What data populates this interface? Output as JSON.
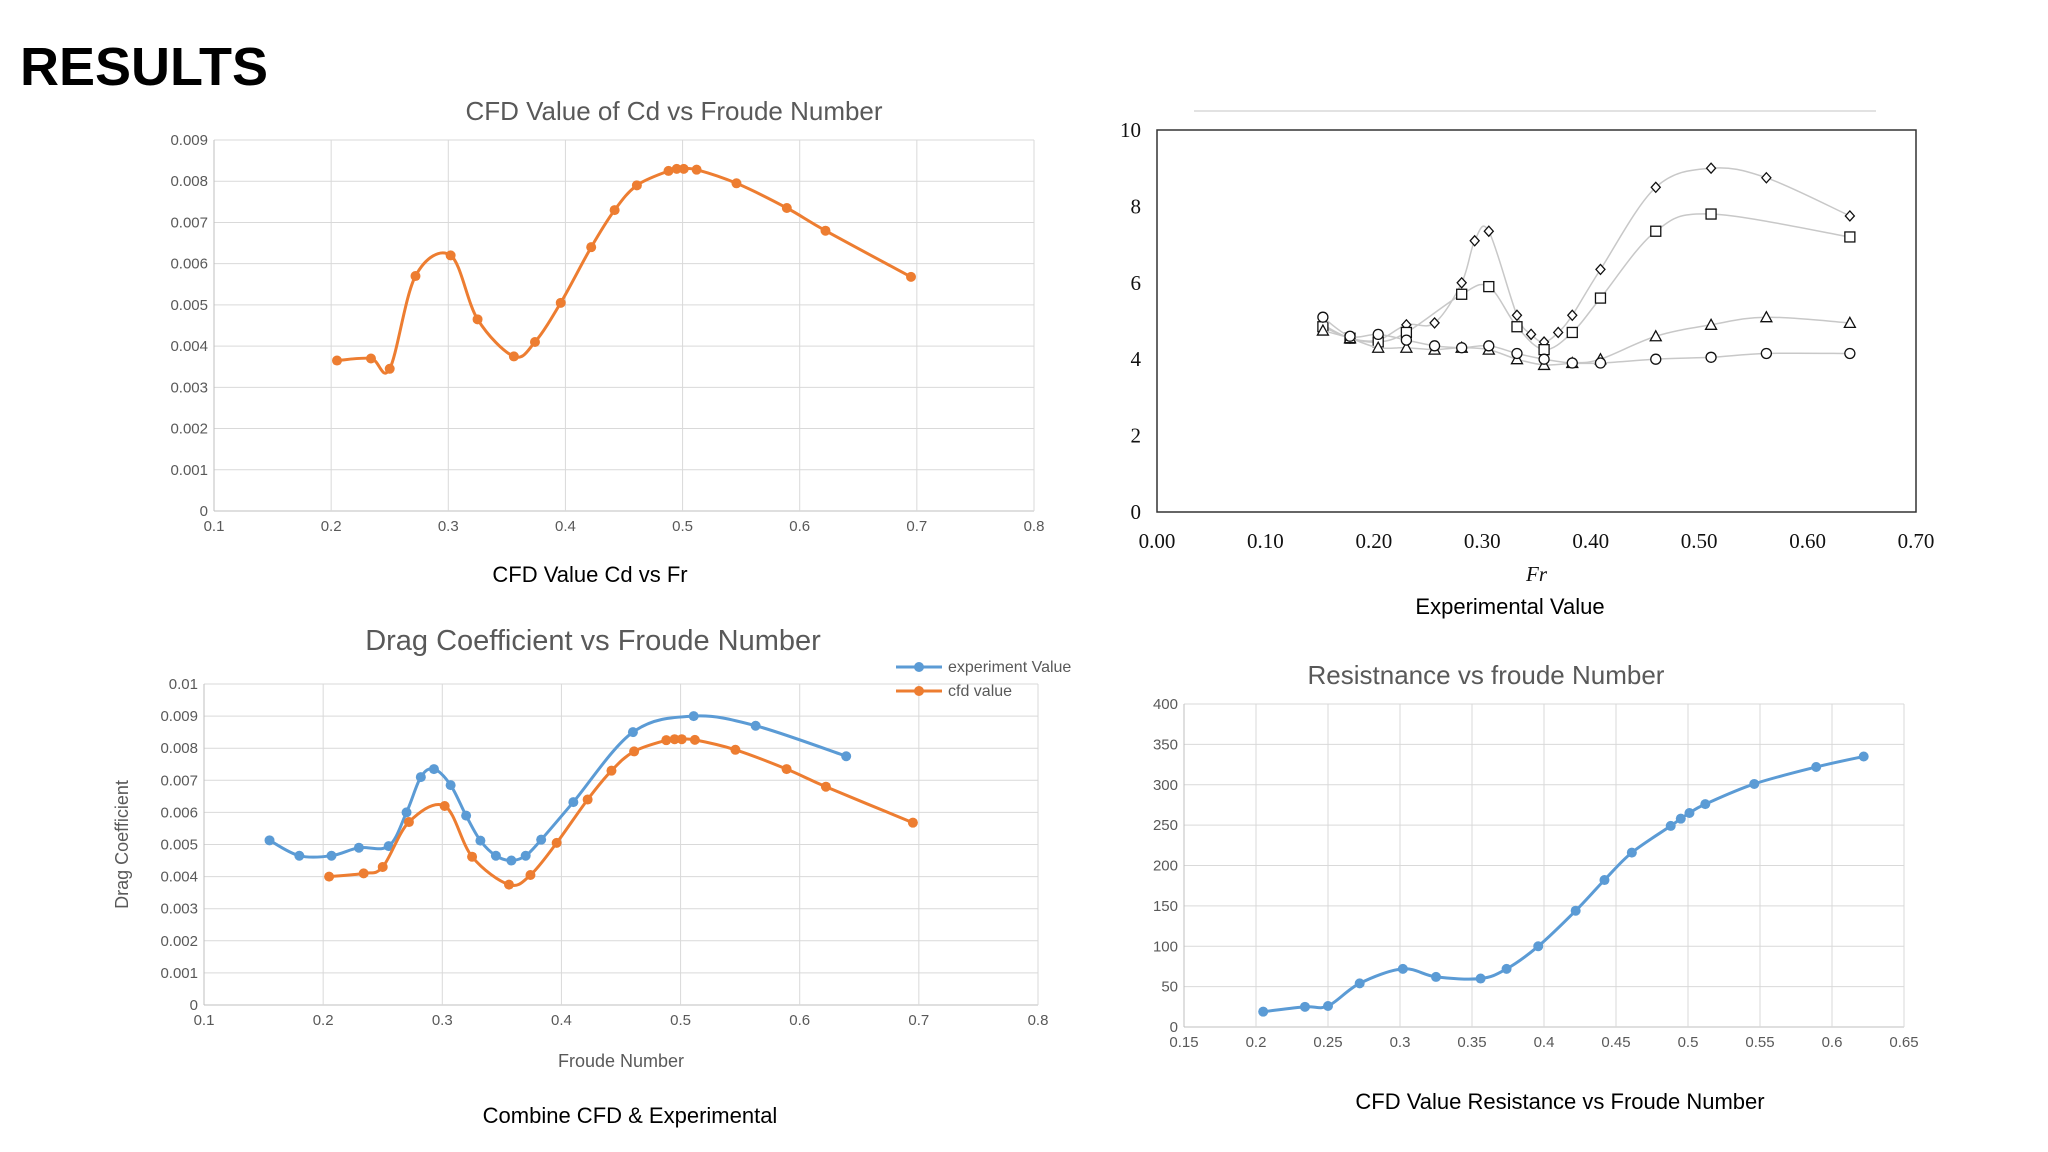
{
  "slide": {
    "title": "RESULTS"
  },
  "captions": {
    "cfd_cd": "CFD Value Cd vs Fr",
    "experimental": "Experimental Value",
    "combined": "Combine CFD & Experimental",
    "resistance": "CFD Value Resistance vs Froude Number"
  },
  "colors": {
    "orange": "#ED7D31",
    "blue": "#5B9BD5",
    "grid": "#D9D9D9",
    "axis_text": "#595959"
  },
  "chart_data": [
    {
      "id": "cfd_cd",
      "type": "line",
      "title": "CFD Value of Cd vs Froude Number",
      "xlabel": "",
      "ylabel": "",
      "xlim": [
        0.1,
        0.8
      ],
      "ylim": [
        0,
        0.009
      ],
      "xticks": [
        "0.1",
        "0.2",
        "0.3",
        "0.4",
        "0.5",
        "0.6",
        "0.7",
        "0.8"
      ],
      "yticks": [
        "0",
        "0.001",
        "0.002",
        "0.003",
        "0.004",
        "0.005",
        "0.006",
        "0.007",
        "0.008",
        "0.009"
      ],
      "grid": true,
      "series": [
        {
          "name": "cfd value",
          "color": "#ED7D31",
          "x": [
            0.205,
            0.234,
            0.25,
            0.272,
            0.302,
            0.325,
            0.356,
            0.374,
            0.396,
            0.422,
            0.442,
            0.461,
            0.488,
            0.495,
            0.501,
            0.512,
            0.546,
            0.589,
            0.622,
            0.695
          ],
          "y": [
            0.00365,
            0.0037,
            0.00345,
            0.0057,
            0.0062,
            0.00465,
            0.00375,
            0.0041,
            0.00505,
            0.0064,
            0.0073,
            0.0079,
            0.00825,
            0.0083,
            0.0083,
            0.00828,
            0.00795,
            0.00735,
            0.0068,
            0.00568
          ]
        }
      ]
    },
    {
      "id": "experimental",
      "type": "scatter",
      "title": "",
      "xlabel": "Fr",
      "ylabel": "",
      "xlim": [
        0,
        0.7
      ],
      "ylim": [
        0,
        10
      ],
      "xticks": [
        "0.00",
        "0.10",
        "0.20",
        "0.30",
        "0.40",
        "0.50",
        "0.60",
        "0.70"
      ],
      "yticks": [
        "0",
        "2",
        "4",
        "6",
        "8",
        "10"
      ],
      "grid": false,
      "series": [
        {
          "name": "diamond",
          "marker": "diamond",
          "x": [
            0.153,
            0.178,
            0.204,
            0.23,
            0.256,
            0.281,
            0.293,
            0.306,
            0.332,
            0.345,
            0.357,
            0.37,
            0.383,
            0.409,
            0.46,
            0.511,
            0.562,
            0.639
          ],
          "y": [
            4.9,
            4.55,
            4.5,
            4.9,
            4.95,
            6.0,
            7.1,
            7.35,
            5.15,
            4.65,
            4.45,
            4.7,
            5.15,
            6.35,
            8.5,
            9.0,
            8.75,
            7.75
          ]
        },
        {
          "name": "square",
          "marker": "square",
          "x": [
            0.153,
            0.178,
            0.204,
            0.23,
            0.281,
            0.306,
            0.332,
            0.357,
            0.383,
            0.409,
            0.46,
            0.511,
            0.639
          ],
          "y": [
            4.85,
            4.55,
            4.45,
            4.7,
            5.7,
            5.9,
            4.85,
            4.25,
            4.7,
            5.6,
            7.35,
            7.8,
            7.2
          ]
        },
        {
          "name": "triangle",
          "marker": "triangle",
          "x": [
            0.153,
            0.178,
            0.204,
            0.23,
            0.256,
            0.281,
            0.306,
            0.332,
            0.357,
            0.383,
            0.409,
            0.46,
            0.511,
            0.562,
            0.639
          ],
          "y": [
            4.75,
            4.55,
            4.3,
            4.3,
            4.25,
            4.3,
            4.25,
            4.0,
            3.85,
            3.9,
            4.0,
            4.6,
            4.9,
            5.1,
            4.95
          ]
        },
        {
          "name": "circle",
          "marker": "circle",
          "x": [
            0.153,
            0.178,
            0.204,
            0.23,
            0.256,
            0.281,
            0.306,
            0.332,
            0.357,
            0.383,
            0.409,
            0.46,
            0.511,
            0.562,
            0.639
          ],
          "y": [
            5.1,
            4.6,
            4.65,
            4.5,
            4.35,
            4.3,
            4.35,
            4.15,
            4.0,
            3.9,
            3.9,
            4.0,
            4.05,
            4.15,
            4.15
          ]
        }
      ]
    },
    {
      "id": "combined",
      "type": "line",
      "title": "Drag Coefficient vs Froude Number",
      "xlabel": "Froude Number",
      "ylabel": "Drag Coefficient",
      "xlim": [
        0.1,
        0.8
      ],
      "ylim": [
        0,
        0.01
      ],
      "xticks": [
        "0.1",
        "0.2",
        "0.3",
        "0.4",
        "0.5",
        "0.6",
        "0.7",
        "0.8"
      ],
      "yticks": [
        "0",
        "0.001",
        "0.002",
        "0.003",
        "0.004",
        "0.005",
        "0.006",
        "0.007",
        "0.008",
        "0.009",
        "0.01"
      ],
      "grid": true,
      "legend": "top-right",
      "series": [
        {
          "name": "experiment Value",
          "color": "#5B9BD5",
          "x": [
            0.155,
            0.18,
            0.207,
            0.23,
            0.255,
            0.27,
            0.282,
            0.293,
            0.307,
            0.32,
            0.332,
            0.345,
            0.358,
            0.37,
            0.383,
            0.41,
            0.46,
            0.511,
            0.563,
            0.639
          ],
          "y": [
            0.00513,
            0.00465,
            0.00465,
            0.0049,
            0.00495,
            0.006,
            0.0071,
            0.00735,
            0.00685,
            0.0059,
            0.00512,
            0.00465,
            0.0045,
            0.00465,
            0.00515,
            0.00632,
            0.0085,
            0.009,
            0.0087,
            0.00775
          ]
        },
        {
          "name": "cfd value",
          "color": "#ED7D31",
          "x": [
            0.205,
            0.234,
            0.25,
            0.272,
            0.302,
            0.325,
            0.356,
            0.374,
            0.396,
            0.422,
            0.442,
            0.461,
            0.488,
            0.495,
            0.501,
            0.512,
            0.546,
            0.589,
            0.622,
            0.695
          ],
          "y": [
            0.004,
            0.0041,
            0.0043,
            0.0057,
            0.0062,
            0.00462,
            0.00375,
            0.00405,
            0.00505,
            0.0064,
            0.0073,
            0.0079,
            0.00825,
            0.00828,
            0.00828,
            0.00826,
            0.00795,
            0.00735,
            0.0068,
            0.00568
          ]
        }
      ]
    },
    {
      "id": "resistance",
      "type": "line",
      "title": "Resistnance vs froude Number",
      "xlabel": "",
      "ylabel": "",
      "xlim": [
        0.15,
        0.65
      ],
      "ylim": [
        0,
        400
      ],
      "xticks": [
        "0.15",
        "0.2",
        "0.25",
        "0.3",
        "0.35",
        "0.4",
        "0.45",
        "0.5",
        "0.55",
        "0.6",
        "0.65"
      ],
      "yticks": [
        "0",
        "50",
        "100",
        "150",
        "200",
        "250",
        "300",
        "350",
        "400"
      ],
      "grid": true,
      "series": [
        {
          "name": "resistance",
          "color": "#5B9BD5",
          "x": [
            0.205,
            0.234,
            0.25,
            0.272,
            0.302,
            0.325,
            0.356,
            0.374,
            0.396,
            0.422,
            0.442,
            0.461,
            0.488,
            0.495,
            0.501,
            0.512,
            0.546,
            0.589,
            0.622
          ],
          "y": [
            19,
            25,
            26,
            54,
            72,
            62,
            60,
            72,
            100,
            144,
            182,
            216,
            249,
            258,
            265,
            276,
            301,
            322,
            335
          ]
        }
      ]
    }
  ]
}
